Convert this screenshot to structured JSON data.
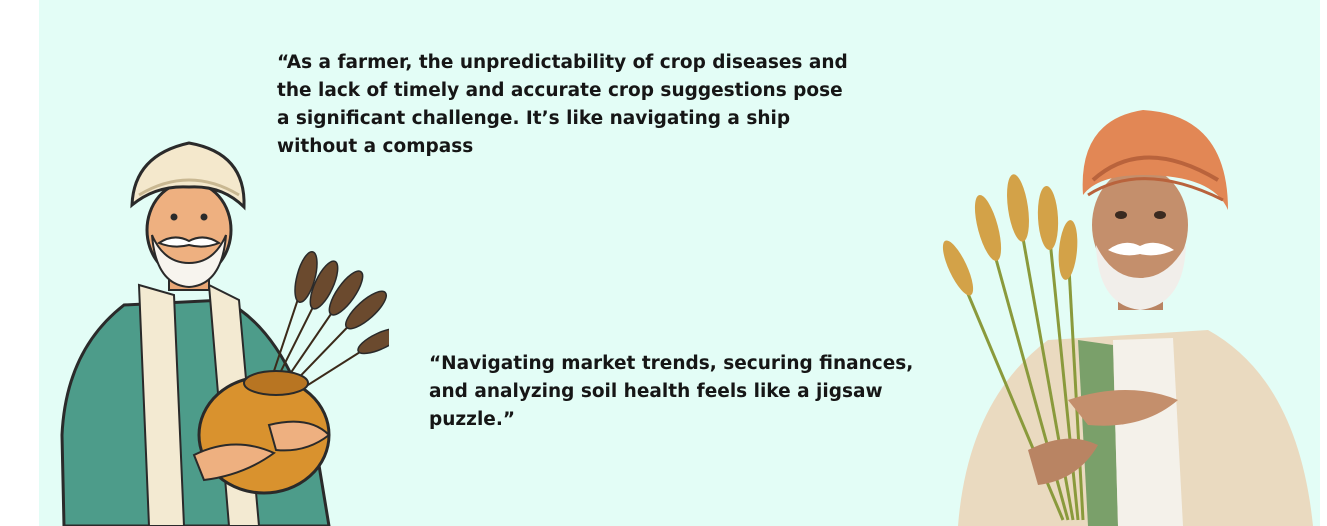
{
  "testimonials": [
    {
      "quote": "“As a farmer, the unpredictability of crop diseases and the lack of timely and accurate crop suggestions pose a significant challenge. It’s like navigating a ship without a compass",
      "illustration": "cartoon-farmer-with-pot-and-wheat"
    },
    {
      "quote": "“Navigating market trends, securing finances, and analyzing soil health feels like a jigsaw puzzle.”",
      "illustration": "painted-farmer-with-wheat"
    }
  ],
  "colors": {
    "background": "#e3fdf6",
    "page": "#ffffff",
    "text": "#161616"
  }
}
